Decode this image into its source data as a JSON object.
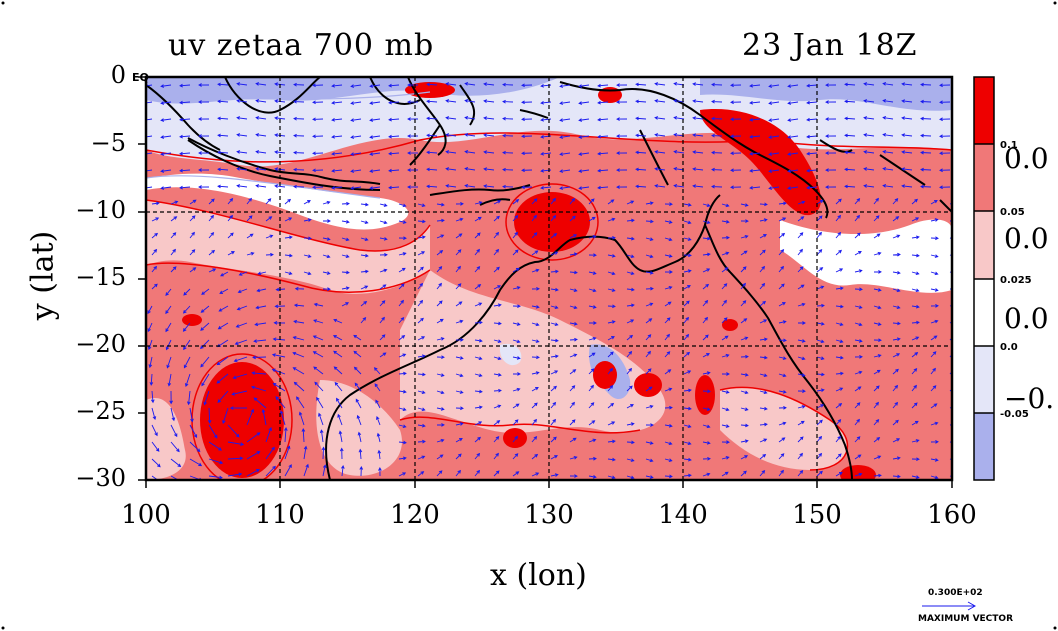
{
  "title_left": "uv zetaa 700 mb",
  "title_right": "23 Jan 18Z",
  "eq_label": "EQ",
  "x_axis_label": "x (lon)",
  "y_axis_label": "y (lat)",
  "x_ticks": [
    "100",
    "110",
    "120",
    "130",
    "140",
    "150",
    "160"
  ],
  "y_ticks": [
    "0",
    "−5",
    "−10",
    "−15",
    "−20",
    "−25",
    "−30"
  ],
  "colorbar": {
    "levels": [
      "0.1",
      "0.05",
      "0.025",
      "0.0",
      "-0.05"
    ],
    "big_labels": [
      "0.0",
      "0.0",
      "0.0",
      "−0."
    ],
    "colors": [
      "#ee0000",
      "#f07878",
      "#f8c8c8",
      "#ffffff",
      "#e4e6f8",
      "#aab0ec"
    ]
  },
  "vector_legend": {
    "value": "0.300E+02",
    "label": "MAXIMUM VECTOR"
  },
  "colors": {
    "strong_pos": "#ee0000",
    "mid_pos": "#f07878",
    "weak_pos": "#f8c8c8",
    "weak_neg": "#e4e6f8",
    "mid_neg": "#aab0ec",
    "vectors": "#1a1aee",
    "coast": "#000000"
  }
}
